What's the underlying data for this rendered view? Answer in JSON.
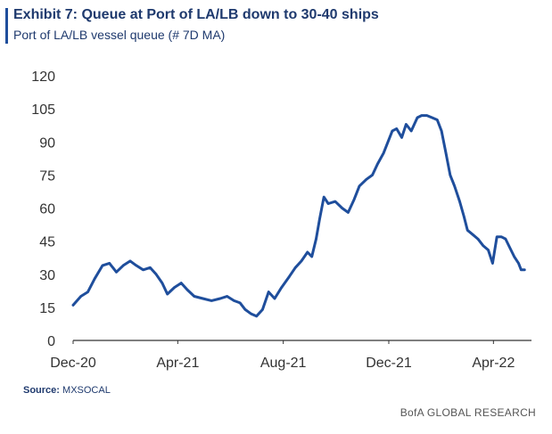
{
  "header": {
    "title": "Exhibit 7: Queue at Port of LA/LB down to 30-40 ships",
    "subtitle": "Port of LA/LB vessel queue (# 7D MA)"
  },
  "footer": {
    "source_label": "Source:",
    "source_value": "MXSOCAL",
    "brand": "BofA GLOBAL RESEARCH"
  },
  "colors": {
    "line": "#1f4e9c",
    "accent": "#1f4e9c",
    "axis": "#333333"
  },
  "chart_data": {
    "type": "line",
    "title": "Exhibit 7: Queue at Port of LA/LB down to 30-40 ships",
    "subtitle": "Port of LA/LB vessel queue (# 7D MA)",
    "xlabel": "",
    "ylabel": "",
    "ylim": [
      0,
      120
    ],
    "xlim": [
      "2020-12-01",
      "2022-05-15"
    ],
    "yticks": [
      0,
      15,
      30,
      45,
      60,
      75,
      90,
      105,
      120
    ],
    "xticks": [
      {
        "date": "2020-12-01",
        "label": "Dec-20"
      },
      {
        "date": "2021-04-01",
        "label": "Apr-21"
      },
      {
        "date": "2021-08-01",
        "label": "Aug-21"
      },
      {
        "date": "2021-12-01",
        "label": "Dec-21"
      },
      {
        "date": "2022-04-01",
        "label": "Apr-22"
      }
    ],
    "grid": false,
    "legend": "none",
    "series": [
      {
        "name": "",
        "points": [
          [
            "2020-12-01",
            16
          ],
          [
            "2020-12-10",
            20
          ],
          [
            "2020-12-18",
            22
          ],
          [
            "2020-12-26",
            28
          ],
          [
            "2021-01-04",
            34
          ],
          [
            "2021-01-12",
            35
          ],
          [
            "2021-01-20",
            31
          ],
          [
            "2021-01-28",
            34
          ],
          [
            "2021-02-05",
            36
          ],
          [
            "2021-02-12",
            34
          ],
          [
            "2021-02-20",
            32
          ],
          [
            "2021-02-28",
            33
          ],
          [
            "2021-03-07",
            30
          ],
          [
            "2021-03-14",
            26
          ],
          [
            "2021-03-20",
            21
          ],
          [
            "2021-03-28",
            24
          ],
          [
            "2021-04-05",
            26
          ],
          [
            "2021-04-12",
            23
          ],
          [
            "2021-04-20",
            20
          ],
          [
            "2021-04-30",
            19
          ],
          [
            "2021-05-10",
            18
          ],
          [
            "2021-05-20",
            19
          ],
          [
            "2021-05-28",
            20
          ],
          [
            "2021-06-05",
            18
          ],
          [
            "2021-06-12",
            17
          ],
          [
            "2021-06-18",
            14
          ],
          [
            "2021-06-25",
            12
          ],
          [
            "2021-07-01",
            11
          ],
          [
            "2021-07-08",
            14
          ],
          [
            "2021-07-15",
            22
          ],
          [
            "2021-07-22",
            19
          ],
          [
            "2021-07-30",
            24
          ],
          [
            "2021-08-08",
            29
          ],
          [
            "2021-08-15",
            33
          ],
          [
            "2021-08-22",
            36
          ],
          [
            "2021-08-29",
            40
          ],
          [
            "2021-09-03",
            38
          ],
          [
            "2021-09-08",
            46
          ],
          [
            "2021-09-12",
            55
          ],
          [
            "2021-09-17",
            65
          ],
          [
            "2021-09-22",
            62
          ],
          [
            "2021-09-30",
            63
          ],
          [
            "2021-10-08",
            60
          ],
          [
            "2021-10-15",
            58
          ],
          [
            "2021-10-22",
            64
          ],
          [
            "2021-10-28",
            70
          ],
          [
            "2021-11-05",
            73
          ],
          [
            "2021-11-12",
            75
          ],
          [
            "2021-11-18",
            80
          ],
          [
            "2021-11-25",
            85
          ],
          [
            "2021-12-01",
            91
          ],
          [
            "2021-12-05",
            95
          ],
          [
            "2021-12-10",
            96
          ],
          [
            "2021-12-16",
            92
          ],
          [
            "2021-12-21",
            98
          ],
          [
            "2021-12-27",
            95
          ],
          [
            "2022-01-03",
            101
          ],
          [
            "2022-01-08",
            102
          ],
          [
            "2022-01-14",
            102
          ],
          [
            "2022-01-20",
            101
          ],
          [
            "2022-01-26",
            100
          ],
          [
            "2022-01-31",
            95
          ],
          [
            "2022-02-05",
            85
          ],
          [
            "2022-02-10",
            75
          ],
          [
            "2022-02-15",
            70
          ],
          [
            "2022-02-21",
            63
          ],
          [
            "2022-02-26",
            56
          ],
          [
            "2022-03-02",
            50
          ],
          [
            "2022-03-08",
            48
          ],
          [
            "2022-03-14",
            46
          ],
          [
            "2022-03-20",
            43
          ],
          [
            "2022-03-26",
            41
          ],
          [
            "2022-03-31",
            35
          ],
          [
            "2022-04-05",
            47
          ],
          [
            "2022-04-10",
            47
          ],
          [
            "2022-04-15",
            46
          ],
          [
            "2022-04-20",
            42
          ],
          [
            "2022-04-25",
            38
          ],
          [
            "2022-04-30",
            35
          ],
          [
            "2022-05-03",
            32
          ],
          [
            "2022-05-07",
            32
          ]
        ]
      }
    ]
  }
}
